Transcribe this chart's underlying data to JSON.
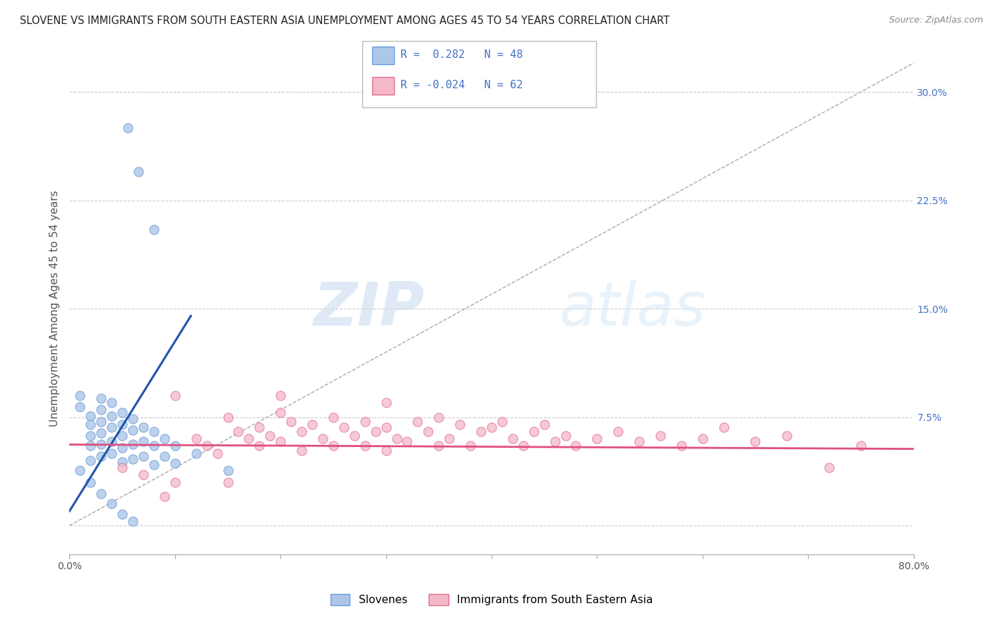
{
  "title": "SLOVENE VS IMMIGRANTS FROM SOUTH EASTERN ASIA UNEMPLOYMENT AMONG AGES 45 TO 54 YEARS CORRELATION CHART",
  "source": "Source: ZipAtlas.com",
  "ylabel": "Unemployment Among Ages 45 to 54 years",
  "xlim": [
    0.0,
    0.8
  ],
  "ylim": [
    -0.02,
    0.32
  ],
  "xticks": [
    0.0,
    0.1,
    0.2,
    0.3,
    0.4,
    0.5,
    0.6,
    0.7,
    0.8
  ],
  "xticklabels": [
    "0.0%",
    "",
    "",
    "",
    "",
    "",
    "",
    "",
    "80.0%"
  ],
  "yticks_right": [
    0.0,
    0.075,
    0.15,
    0.225,
    0.3
  ],
  "ytick_right_labels": [
    "",
    "7.5%",
    "15.0%",
    "22.5%",
    "30.0%"
  ],
  "watermark": "ZIPatlas",
  "blue_scatter_x": [
    0.055,
    0.065,
    0.08,
    0.01,
    0.01,
    0.02,
    0.02,
    0.02,
    0.02,
    0.02,
    0.03,
    0.03,
    0.03,
    0.03,
    0.03,
    0.03,
    0.04,
    0.04,
    0.04,
    0.04,
    0.04,
    0.05,
    0.05,
    0.05,
    0.05,
    0.05,
    0.06,
    0.06,
    0.06,
    0.06,
    0.07,
    0.07,
    0.07,
    0.08,
    0.08,
    0.08,
    0.09,
    0.09,
    0.1,
    0.1,
    0.12,
    0.15,
    0.01,
    0.02,
    0.03,
    0.04,
    0.05,
    0.06
  ],
  "blue_scatter_y": [
    0.275,
    0.245,
    0.205,
    0.09,
    0.082,
    0.076,
    0.07,
    0.062,
    0.055,
    0.045,
    0.088,
    0.08,
    0.072,
    0.064,
    0.056,
    0.048,
    0.085,
    0.076,
    0.068,
    0.058,
    0.05,
    0.078,
    0.07,
    0.062,
    0.054,
    0.044,
    0.074,
    0.066,
    0.056,
    0.046,
    0.068,
    0.058,
    0.048,
    0.065,
    0.055,
    0.042,
    0.06,
    0.048,
    0.055,
    0.043,
    0.05,
    0.038,
    0.038,
    0.03,
    0.022,
    0.015,
    0.008,
    0.003
  ],
  "pink_scatter_x": [
    0.05,
    0.07,
    0.09,
    0.1,
    0.12,
    0.13,
    0.14,
    0.15,
    0.15,
    0.16,
    0.17,
    0.18,
    0.18,
    0.19,
    0.2,
    0.2,
    0.21,
    0.22,
    0.22,
    0.23,
    0.24,
    0.25,
    0.25,
    0.26,
    0.27,
    0.28,
    0.28,
    0.29,
    0.3,
    0.3,
    0.31,
    0.32,
    0.33,
    0.34,
    0.35,
    0.35,
    0.36,
    0.37,
    0.38,
    0.39,
    0.4,
    0.41,
    0.42,
    0.43,
    0.44,
    0.45,
    0.46,
    0.47,
    0.48,
    0.5,
    0.52,
    0.54,
    0.56,
    0.58,
    0.6,
    0.62,
    0.65,
    0.68,
    0.72,
    0.75,
    0.1,
    0.2,
    0.3
  ],
  "pink_scatter_y": [
    0.04,
    0.035,
    0.02,
    0.03,
    0.06,
    0.055,
    0.05,
    0.075,
    0.03,
    0.065,
    0.06,
    0.068,
    0.055,
    0.062,
    0.078,
    0.058,
    0.072,
    0.065,
    0.052,
    0.07,
    0.06,
    0.075,
    0.055,
    0.068,
    0.062,
    0.072,
    0.055,
    0.065,
    0.068,
    0.052,
    0.06,
    0.058,
    0.072,
    0.065,
    0.055,
    0.075,
    0.06,
    0.07,
    0.055,
    0.065,
    0.068,
    0.072,
    0.06,
    0.055,
    0.065,
    0.07,
    0.058,
    0.062,
    0.055,
    0.06,
    0.065,
    0.058,
    0.062,
    0.055,
    0.06,
    0.068,
    0.058,
    0.062,
    0.04,
    0.055,
    0.09,
    0.09,
    0.085
  ],
  "blue_line_x": [
    0.0,
    0.115
  ],
  "blue_line_y": [
    0.01,
    0.145
  ],
  "pink_line_x": [
    0.0,
    0.8
  ],
  "pink_line_y": [
    0.056,
    0.053
  ],
  "diag_line_x": [
    0.0,
    0.8
  ],
  "diag_line_y": [
    0.0,
    0.32
  ],
  "scatter_size": 90,
  "blue_color": "#aec6e8",
  "blue_edge": "#6a9fd8",
  "pink_color": "#f4b8c8",
  "pink_edge": "#e07090",
  "background_color": "#ffffff",
  "grid_color": "#cccccc",
  "title_fontsize": 10.5,
  "axis_label_fontsize": 11,
  "tick_fontsize": 10
}
